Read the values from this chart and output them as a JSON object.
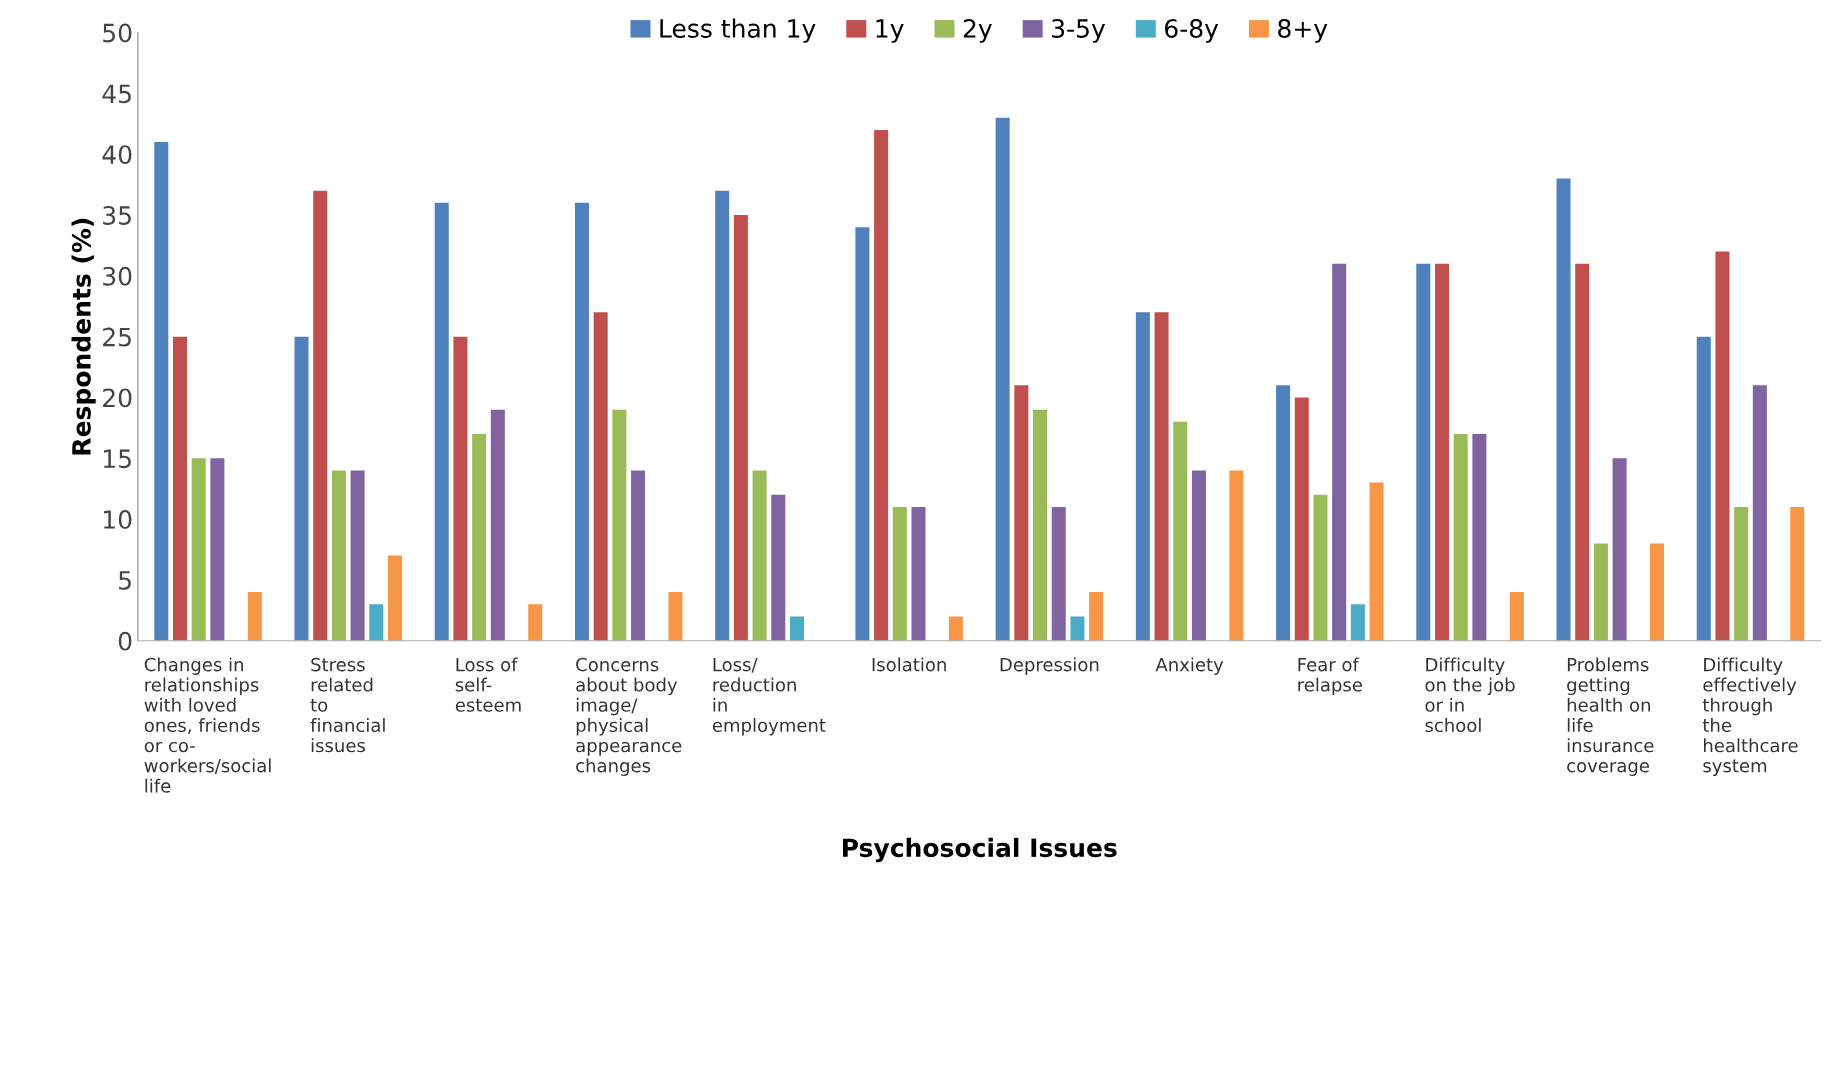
{
  "chart_data": {
    "type": "bar",
    "xlabel": "Psychosocial Issues",
    "ylabel": "Respondents (%)",
    "categories": [
      "Changes in\nrelationships\nwith loved\nones, friends\nor co-\nworkers/social\nlife",
      "Stress\nrelated\nto\nfinancial\nissues",
      "Loss of\nself-\nesteem",
      "Concerns\nabout body\nimage/\nphysical\nappearance\nchanges",
      "Loss/\nreduction\nin\nemployment",
      "Isolation",
      "Depression",
      "Anxiety",
      "Fear of\nrelapse",
      "Difficulty\non the job\nor in\nschool",
      "Problems\ngetting\nhealth on\nlife\ninsurance\ncoverage",
      "Difficulty\neffectively\nthrough\nthe\nhealthcare\nsystem"
    ],
    "series": [
      {
        "name": "Less than 1y",
        "color": "#4f81bd",
        "values": [
          41,
          25,
          36,
          36,
          37,
          34,
          43,
          27,
          21,
          31,
          38,
          25
        ]
      },
      {
        "name": "1y",
        "color": "#c0504d",
        "values": [
          25,
          37,
          25,
          27,
          35,
          42,
          21,
          27,
          20,
          31,
          31,
          32
        ]
      },
      {
        "name": "2y",
        "color": "#9bbb59",
        "values": [
          15,
          14,
          17,
          19,
          14,
          11,
          19,
          18,
          12,
          17,
          8,
          11
        ]
      },
      {
        "name": "3-5y",
        "color": "#8064a2",
        "values": [
          15,
          14,
          19,
          14,
          12,
          11,
          11,
          14,
          31,
          17,
          15,
          21
        ]
      },
      {
        "name": "6-8y",
        "color": "#4bacc6",
        "values": [
          0,
          3,
          0,
          0,
          2,
          0,
          2,
          0,
          3,
          0,
          0,
          0
        ]
      },
      {
        "name": "8+y",
        "color": "#f79646",
        "values": [
          4,
          7,
          3,
          4,
          0,
          2,
          4,
          14,
          13,
          4,
          8,
          11
        ]
      }
    ],
    "ylim": [
      0,
      50
    ],
    "yticks": [
      0,
      5,
      10,
      15,
      20,
      25,
      30,
      35,
      40,
      45,
      50
    ],
    "grid": false,
    "legend": "top"
  }
}
